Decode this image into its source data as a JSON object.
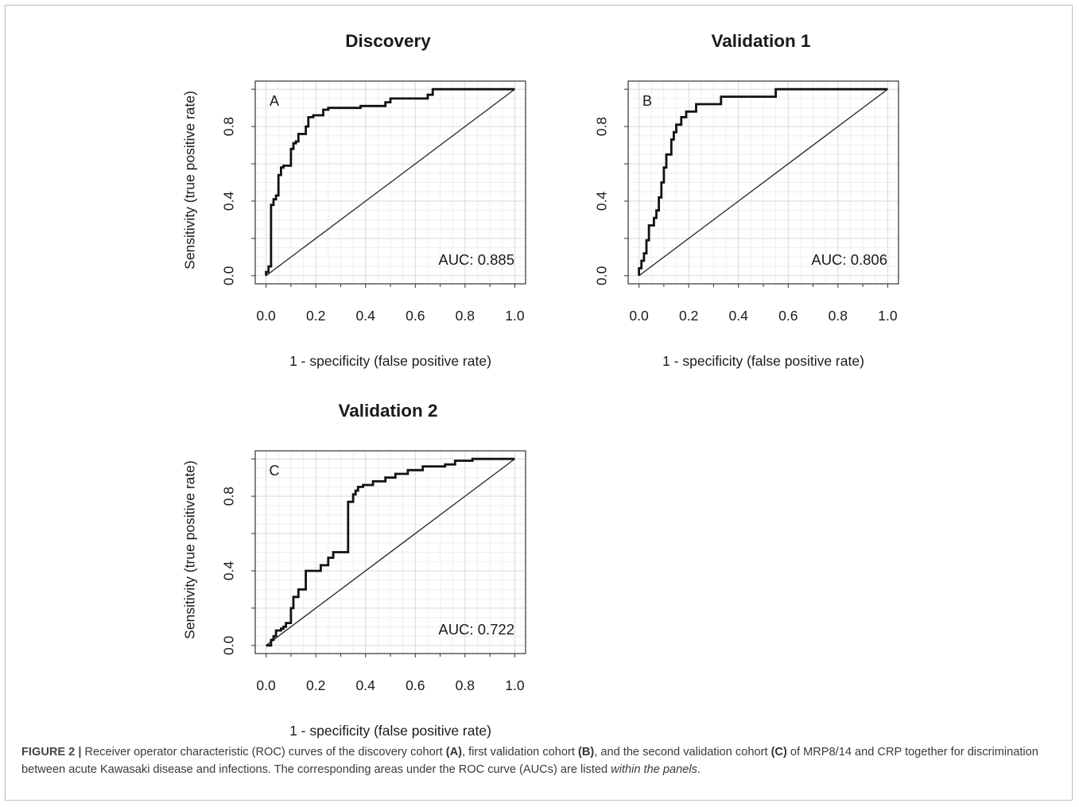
{
  "figure": {
    "caption": {
      "label": "FIGURE 2 |",
      "t1": " Receiver operator characteristic (ROC) curves of the discovery cohort ",
      "tagA": "(A)",
      "t2": ", first validation cohort ",
      "tagB": "(B)",
      "t3": ", and the second validation cohort ",
      "tagC": "(C)",
      "t4": " of MRP8/14 and CRP together for discrimination between acute Kawasaki disease and infections. The corresponding areas under the ROC curve (AUCs) are listed ",
      "emph": "within the panels",
      "t5": "."
    }
  },
  "chart_data": [
    {
      "type": "line",
      "title": "Discovery",
      "panel_letter": "A",
      "annotation": "AUC: 0.885",
      "xlabel": "1 - specificity (false positive rate)",
      "ylabel": "Sensitivity (true positive rate)",
      "xlim": [
        0,
        1
      ],
      "ylim": [
        0,
        1
      ],
      "x_ticks": [
        "0.0",
        "0.2",
        "0.4",
        "0.6",
        "0.8",
        "1.0"
      ],
      "y_ticks": [
        "0.0",
        "0.4",
        "0.8"
      ],
      "grid": true,
      "reference_line": [
        [
          0,
          0
        ],
        [
          1,
          1
        ]
      ],
      "series": [
        {
          "x": [
            0,
            0,
            0.01,
            0.01,
            0.02,
            0.02,
            0.03,
            0.03,
            0.04,
            0.04,
            0.05,
            0.05,
            0.06,
            0.06,
            0.07,
            0.07,
            0.1,
            0.1,
            0.11,
            0.11,
            0.12,
            0.12,
            0.13,
            0.13,
            0.16,
            0.16,
            0.17,
            0.17,
            0.19,
            0.19,
            0.23,
            0.23,
            0.25,
            0.25,
            0.38,
            0.38,
            0.48,
            0.48,
            0.5,
            0.5,
            0.65,
            0.65,
            0.67,
            0.67,
            1.0
          ],
          "y": [
            0,
            0.02,
            0.02,
            0.05,
            0.05,
            0.38,
            0.38,
            0.41,
            0.41,
            0.43,
            0.43,
            0.54,
            0.54,
            0.58,
            0.58,
            0.59,
            0.59,
            0.68,
            0.68,
            0.71,
            0.71,
            0.72,
            0.72,
            0.76,
            0.76,
            0.8,
            0.8,
            0.85,
            0.85,
            0.86,
            0.86,
            0.89,
            0.89,
            0.9,
            0.9,
            0.91,
            0.91,
            0.93,
            0.93,
            0.95,
            0.95,
            0.97,
            0.97,
            1.0,
            1.0
          ]
        }
      ]
    },
    {
      "type": "line",
      "title": "Validation 1",
      "panel_letter": "B",
      "annotation": "AUC: 0.806",
      "xlabel": "1 - specificity (false positive rate)",
      "ylabel": "",
      "xlim": [
        0,
        1
      ],
      "ylim": [
        0,
        1
      ],
      "x_ticks": [
        "0.0",
        "0.2",
        "0.4",
        "0.6",
        "0.8",
        "1.0"
      ],
      "y_ticks": [
        "0.0",
        "0.4",
        "0.8"
      ],
      "grid": true,
      "reference_line": [
        [
          0,
          0
        ],
        [
          1,
          1
        ]
      ],
      "series": [
        {
          "x": [
            0,
            0,
            0.01,
            0.01,
            0.02,
            0.02,
            0.03,
            0.03,
            0.04,
            0.04,
            0.06,
            0.06,
            0.07,
            0.07,
            0.08,
            0.08,
            0.09,
            0.09,
            0.1,
            0.1,
            0.11,
            0.11,
            0.13,
            0.13,
            0.14,
            0.14,
            0.15,
            0.15,
            0.17,
            0.17,
            0.19,
            0.19,
            0.23,
            0.23,
            0.33,
            0.33,
            0.55,
            0.55,
            0.72,
            0.72,
            1.0
          ],
          "y": [
            0,
            0.04,
            0.04,
            0.08,
            0.08,
            0.12,
            0.12,
            0.19,
            0.19,
            0.27,
            0.27,
            0.31,
            0.31,
            0.35,
            0.35,
            0.42,
            0.42,
            0.5,
            0.5,
            0.58,
            0.58,
            0.65,
            0.65,
            0.73,
            0.73,
            0.77,
            0.77,
            0.81,
            0.81,
            0.85,
            0.85,
            0.88,
            0.88,
            0.92,
            0.92,
            0.96,
            0.96,
            1.0,
            1.0,
            1.0,
            1.0
          ]
        }
      ]
    },
    {
      "type": "line",
      "title": "Validation 2",
      "panel_letter": "C",
      "annotation": "AUC: 0.722",
      "xlabel": "1 - specificity (false positive rate)",
      "ylabel": "Sensitivity (true positive rate)",
      "xlim": [
        0,
        1
      ],
      "ylim": [
        0,
        1
      ],
      "x_ticks": [
        "0.0",
        "0.2",
        "0.4",
        "0.6",
        "0.8",
        "1.0"
      ],
      "y_ticks": [
        "0.0",
        "0.4",
        "0.8"
      ],
      "grid": true,
      "reference_line": [
        [
          0,
          0
        ],
        [
          1,
          1
        ]
      ],
      "series": [
        {
          "x": [
            0,
            0.02,
            0.02,
            0.03,
            0.03,
            0.04,
            0.04,
            0.06,
            0.06,
            0.07,
            0.07,
            0.08,
            0.08,
            0.1,
            0.1,
            0.11,
            0.11,
            0.13,
            0.13,
            0.16,
            0.16,
            0.22,
            0.22,
            0.25,
            0.25,
            0.27,
            0.27,
            0.33,
            0.33,
            0.35,
            0.35,
            0.36,
            0.36,
            0.37,
            0.37,
            0.39,
            0.39,
            0.43,
            0.43,
            0.48,
            0.48,
            0.52,
            0.52,
            0.57,
            0.57,
            0.63,
            0.63,
            0.72,
            0.72,
            0.76,
            0.76,
            0.83,
            0.83,
            1.0
          ],
          "y": [
            0,
            0,
            0.03,
            0.03,
            0.05,
            0.05,
            0.08,
            0.08,
            0.09,
            0.09,
            0.1,
            0.1,
            0.12,
            0.12,
            0.2,
            0.2,
            0.26,
            0.26,
            0.3,
            0.3,
            0.4,
            0.4,
            0.43,
            0.43,
            0.47,
            0.47,
            0.5,
            0.5,
            0.77,
            0.77,
            0.81,
            0.81,
            0.83,
            0.83,
            0.85,
            0.85,
            0.86,
            0.86,
            0.88,
            0.88,
            0.9,
            0.9,
            0.92,
            0.92,
            0.94,
            0.94,
            0.96,
            0.96,
            0.97,
            0.97,
            0.99,
            0.99,
            1.0,
            1.0
          ]
        }
      ]
    }
  ]
}
